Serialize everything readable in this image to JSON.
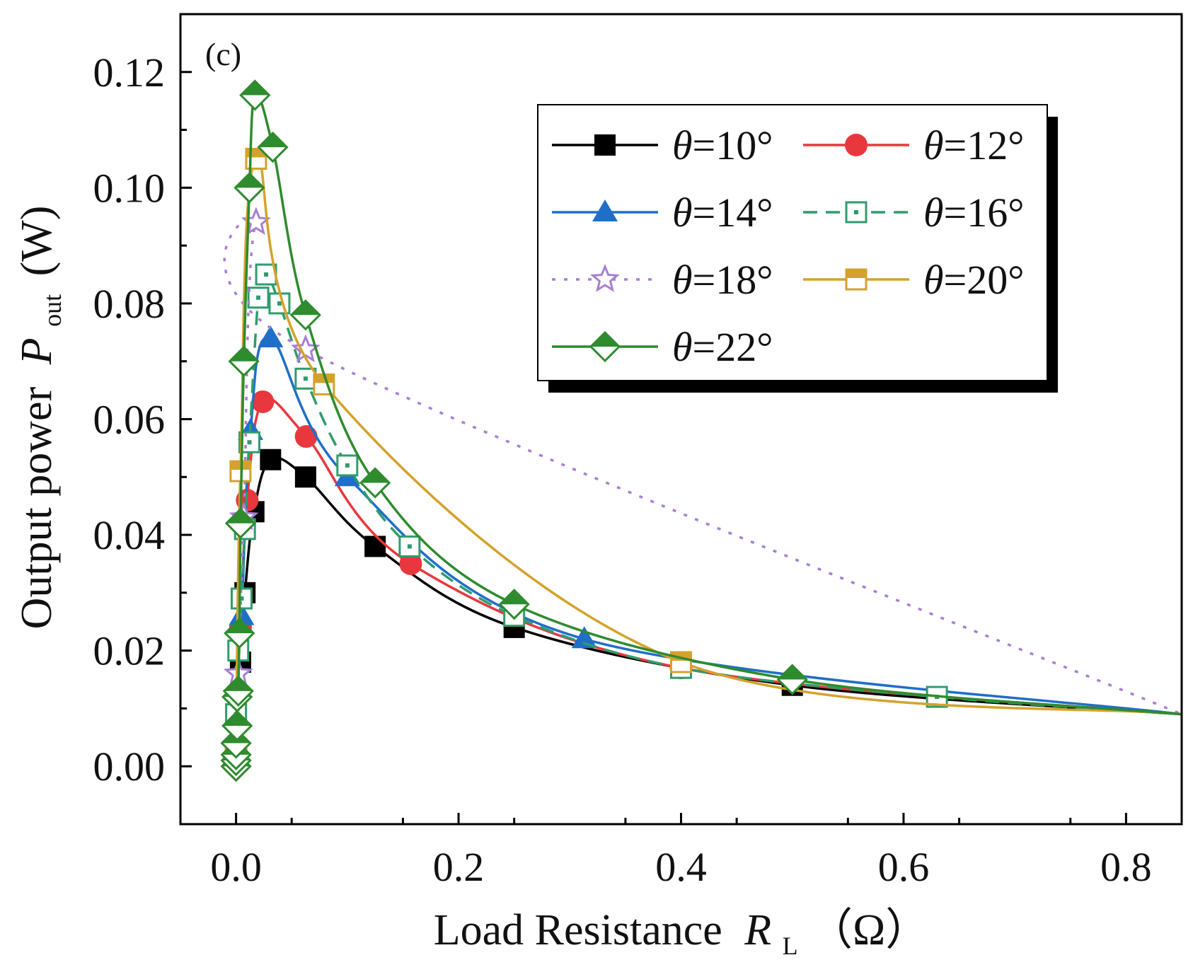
{
  "chart_data": {
    "type": "line",
    "panel_label": "(c)",
    "xlabel": "Load Resistance",
    "xlabel_symbol": "R",
    "xlabel_subscript": "L",
    "xlabel_unit": "（Ω）",
    "ylabel": "Output power",
    "ylabel_symbol": "P",
    "ylabel_subscript": "out",
    "ylabel_unit": "(W)",
    "xlim": [
      -0.05,
      0.85
    ],
    "ylim": [
      -0.01,
      0.13
    ],
    "xticks": [
      0.0,
      0.2,
      0.4,
      0.6,
      0.8
    ],
    "xtick_labels": [
      "0.0",
      "0.2",
      "0.4",
      "0.6",
      "0.8"
    ],
    "yticks": [
      0.0,
      0.02,
      0.04,
      0.06,
      0.08,
      0.1,
      0.12
    ],
    "ytick_labels": [
      "0.00",
      "0.02",
      "0.04",
      "0.06",
      "0.08",
      "0.10",
      "0.12"
    ],
    "legend_position": "top-right",
    "series": [
      {
        "name": "θ=10°",
        "symbol": "θ",
        "suffix": "=10°",
        "color": "#000000",
        "marker": "square-filled",
        "dash": "",
        "x": [
          0.0,
          0.004,
          0.008,
          0.016,
          0.031,
          0.0625,
          0.125,
          0.25,
          0.5,
          0.85
        ],
        "y": [
          0.003,
          0.018,
          0.03,
          0.044,
          0.053,
          0.05,
          0.038,
          0.024,
          0.014,
          0.009
        ]
      },
      {
        "name": "θ=12°",
        "symbol": "θ",
        "suffix": "=12°",
        "color": "#e8383d",
        "marker": "circle-filled",
        "dash": "",
        "x": [
          0.0,
          0.004,
          0.01,
          0.024,
          0.063,
          0.157,
          0.4,
          0.85
        ],
        "y": [
          0.003,
          0.024,
          0.046,
          0.063,
          0.057,
          0.035,
          0.017,
          0.009
        ]
      },
      {
        "name": "θ=14°",
        "symbol": "θ",
        "suffix": "=14°",
        "color": "#1f6fc8",
        "marker": "triangle-filled",
        "dash": "",
        "x": [
          0.0,
          0.005,
          0.013,
          0.031,
          0.1,
          0.313,
          0.85
        ],
        "y": [
          0.003,
          0.026,
          0.058,
          0.074,
          0.05,
          0.022,
          0.009
        ]
      },
      {
        "name": "θ=16°",
        "symbol": "θ",
        "suffix": "=16°",
        "color": "#2f9c6c",
        "marker": "square-open-dot",
        "dash": "20,12",
        "x": [
          0.0,
          0.0,
          0.002,
          0.005,
          0.008,
          0.012,
          0.02,
          0.027,
          0.039,
          0.0625,
          0.1,
          0.156,
          0.25,
          0.4,
          0.63,
          0.85
        ],
        "y": [
          0.002,
          0.009,
          0.02,
          0.029,
          0.041,
          0.056,
          0.081,
          0.085,
          0.08,
          0.067,
          0.052,
          0.038,
          0.026,
          0.017,
          0.012,
          0.009
        ]
      },
      {
        "name": "θ=18°",
        "symbol": "θ",
        "suffix": "=18°",
        "color": "#a77fd4",
        "marker": "star-open",
        "dash": "5,12",
        "x": [
          0.0,
          0.002,
          0.007,
          0.018,
          0.0625,
          0.85
        ],
        "y": [
          0.003,
          0.016,
          0.043,
          0.094,
          0.072,
          0.009
        ]
      },
      {
        "name": "θ=20°",
        "symbol": "θ",
        "suffix": "=20°",
        "color": "#d4a22c",
        "marker": "square-half",
        "dash": "",
        "x": [
          0.0,
          0.004,
          0.018,
          0.079,
          0.4,
          0.85
        ],
        "y": [
          0.003,
          0.051,
          0.105,
          0.066,
          0.018,
          0.009
        ]
      },
      {
        "name": "θ=22°",
        "symbol": "θ",
        "suffix": "=22°",
        "color": "#2e8b2e",
        "marker": "diamond-half",
        "dash": "",
        "x": [
          0.0,
          0.0,
          0.0,
          0.0,
          0.001,
          0.001,
          0.002,
          0.003,
          0.004,
          0.007,
          0.012,
          0.017,
          0.033,
          0.0625,
          0.125,
          0.25,
          0.5,
          0.85
        ],
        "y": [
          0.0,
          0.001,
          0.002,
          0.004,
          0.007,
          0.012,
          0.013,
          0.023,
          0.042,
          0.07,
          0.1,
          0.116,
          0.107,
          0.078,
          0.049,
          0.028,
          0.015,
          0.009
        ]
      }
    ]
  }
}
